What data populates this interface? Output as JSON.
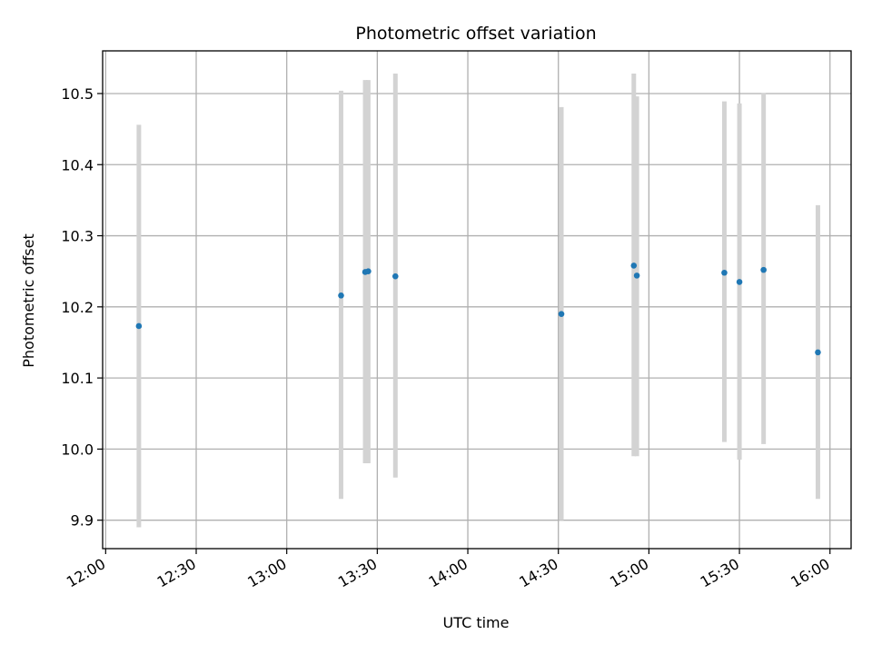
{
  "chart_data": {
    "type": "scatter",
    "title": "Photometric offset variation",
    "xlabel": "UTC time",
    "ylabel": "Photometric offset",
    "x_unit": "HH:MM (UTC)",
    "xlim": [
      "11:59",
      "16:07"
    ],
    "ylim": [
      9.86,
      10.56
    ],
    "x_ticks": [
      "12:00",
      "12:30",
      "13:00",
      "13:30",
      "14:00",
      "14:30",
      "15:00",
      "15:30",
      "16:00"
    ],
    "y_ticks": [
      "9.9",
      "10.0",
      "10.1",
      "10.2",
      "10.3",
      "10.4",
      "10.5"
    ],
    "y_tick_values": [
      9.9,
      10.0,
      10.1,
      10.2,
      10.3,
      10.4,
      10.5
    ],
    "grid": true,
    "colors": {
      "point": "#1f77b4",
      "errorbar": "#d3d3d3",
      "grid": "#b0b0b0"
    },
    "points": [
      {
        "x": "12:11",
        "y": 10.173,
        "y_low": 9.89,
        "y_high": 10.456
      },
      {
        "x": "13:18",
        "y": 10.216,
        "y_low": 9.93,
        "y_high": 10.504
      },
      {
        "x": "13:26",
        "y": 10.249,
        "y_low": 9.98,
        "y_high": 10.519
      },
      {
        "x": "13:27",
        "y": 10.25,
        "y_low": 9.98,
        "y_high": 10.519
      },
      {
        "x": "13:36",
        "y": 10.243,
        "y_low": 9.96,
        "y_high": 10.528
      },
      {
        "x": "14:31",
        "y": 10.19,
        "y_low": 9.9,
        "y_high": 10.481
      },
      {
        "x": "14:55",
        "y": 10.258,
        "y_low": 9.99,
        "y_high": 10.528
      },
      {
        "x": "14:56",
        "y": 10.244,
        "y_low": 9.99,
        "y_high": 10.496
      },
      {
        "x": "15:25",
        "y": 10.248,
        "y_low": 10.01,
        "y_high": 10.489
      },
      {
        "x": "15:30",
        "y": 10.235,
        "y_low": 9.985,
        "y_high": 10.486
      },
      {
        "x": "15:38",
        "y": 10.252,
        "y_low": 10.007,
        "y_high": 10.501
      },
      {
        "x": "15:56",
        "y": 10.136,
        "y_low": 9.93,
        "y_high": 10.343
      }
    ]
  }
}
